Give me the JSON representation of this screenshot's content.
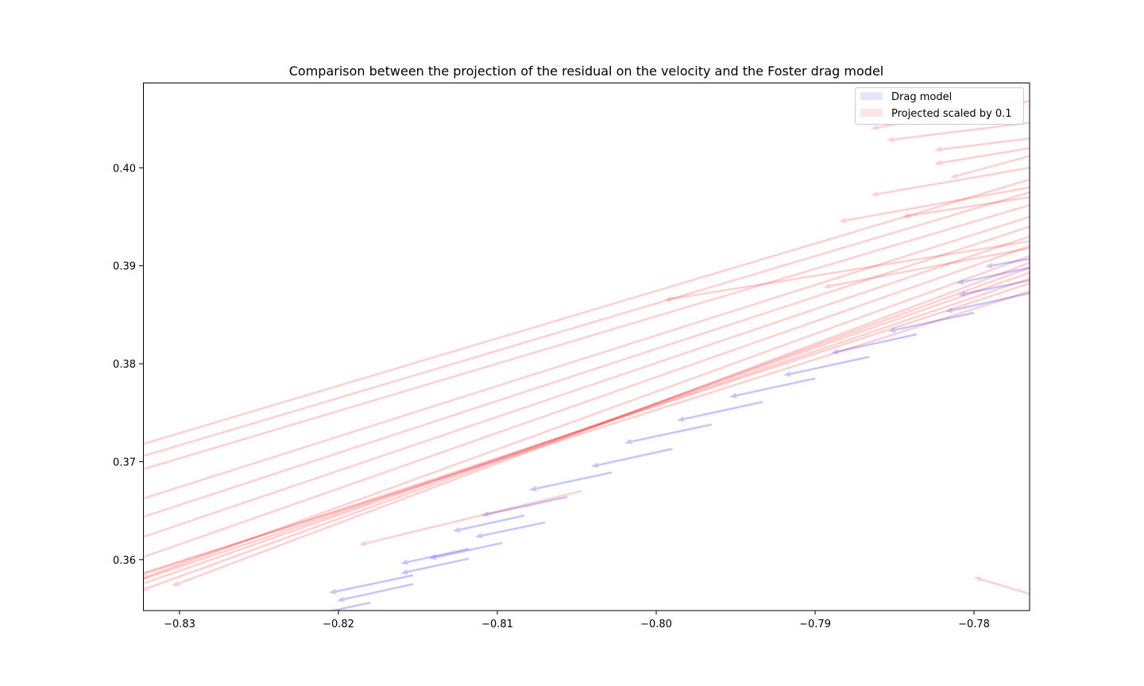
{
  "chart_data": {
    "type": "quiver",
    "title": "Comparison between the projection of the residual on the velocity and the Foster drag model",
    "xlabel": "",
    "ylabel": "",
    "xlim": [
      -0.8323,
      -0.7765
    ],
    "ylim": [
      0.3548,
      0.4087
    ],
    "x_ticks": [
      -0.83,
      -0.82,
      -0.81,
      -0.8,
      -0.79,
      -0.78
    ],
    "x_tick_labels": [
      "−0.83",
      "−0.82",
      "−0.81",
      "−0.80",
      "−0.79",
      "−0.78"
    ],
    "y_ticks": [
      0.36,
      0.37,
      0.38,
      0.39,
      0.4
    ],
    "y_tick_labels": [
      "0.36",
      "0.37",
      "0.38",
      "0.39",
      "0.40"
    ],
    "grid": false,
    "legend_position": "top-right",
    "series": [
      {
        "name": "Drag model",
        "color": "#0000ff",
        "alpha": 0.22,
        "vectors": [
          {
            "x": -0.8153,
            "y": 0.3575,
            "u": -0.0048,
            "v": -0.0017
          },
          {
            "x": -0.8153,
            "y": 0.3584,
            "u": -0.0053,
            "v": -0.0018
          },
          {
            "x": -0.8118,
            "y": 0.3611,
            "u": -0.0043,
            "v": -0.0015
          },
          {
            "x": -0.8083,
            "y": 0.3645,
            "u": -0.0045,
            "v": -0.0016
          },
          {
            "x": -0.8097,
            "y": 0.3617,
            "u": -0.0046,
            "v": -0.0016
          },
          {
            "x": -0.8056,
            "y": 0.3664,
            "u": -0.0054,
            "v": -0.0019
          },
          {
            "x": -0.8028,
            "y": 0.3689,
            "u": -0.0052,
            "v": -0.0018
          },
          {
            "x": -0.799,
            "y": 0.3713,
            "u": -0.0051,
            "v": -0.0018
          },
          {
            "x": -0.7965,
            "y": 0.3738,
            "u": -0.0055,
            "v": -0.0019
          },
          {
            "x": -0.7933,
            "y": 0.3761,
            "u": -0.0054,
            "v": -0.0019
          },
          {
            "x": -0.79,
            "y": 0.3785,
            "u": -0.0054,
            "v": -0.0019
          },
          {
            "x": -0.7866,
            "y": 0.3807,
            "u": -0.0054,
            "v": -0.0019
          },
          {
            "x": -0.7836,
            "y": 0.383,
            "u": -0.0054,
            "v": -0.0019
          },
          {
            "x": -0.78,
            "y": 0.3852,
            "u": -0.0054,
            "v": -0.0019
          },
          {
            "x": -0.7765,
            "y": 0.3872,
            "u": -0.0053,
            "v": -0.0019
          },
          {
            "x": -0.7765,
            "y": 0.3885,
            "u": -0.0045,
            "v": -0.0015
          },
          {
            "x": -0.7765,
            "y": 0.3898,
            "u": -0.0046,
            "v": -0.0016
          },
          {
            "x": -0.7765,
            "y": 0.3907,
            "u": -0.0028,
            "v": -0.0008
          },
          {
            "x": -0.818,
            "y": 0.3556,
            "u": -0.0047,
            "v": -0.0016
          },
          {
            "x": -0.8118,
            "y": 0.3601,
            "u": -0.0043,
            "v": -0.0015
          },
          {
            "x": -0.807,
            "y": 0.3638,
            "u": -0.0044,
            "v": -0.0015
          }
        ]
      },
      {
        "name": "Projected scaled by 0.1",
        "color": "#ff0000",
        "alpha": 0.18,
        "vectors": [
          {
            "x": -0.7765,
            "y": 0.3874,
            "u": -0.064,
            "v": -0.033
          },
          {
            "x": -0.7765,
            "y": 0.3882,
            "u": -0.062,
            "v": -0.033
          },
          {
            "x": -0.7765,
            "y": 0.3887,
            "u": -0.06,
            "v": -0.033
          },
          {
            "x": -0.7765,
            "y": 0.3893,
            "u": -0.058,
            "v": -0.033
          },
          {
            "x": -0.7765,
            "y": 0.3898,
            "u": -0.056,
            "v": -0.033
          },
          {
            "x": -0.7765,
            "y": 0.3903,
            "u": -0.054,
            "v": -0.033
          },
          {
            "x": -0.7765,
            "y": 0.391,
            "u": -0.056,
            "v": -0.033
          },
          {
            "x": -0.7765,
            "y": 0.392,
            "u": -0.058,
            "v": -0.033
          },
          {
            "x": -0.7765,
            "y": 0.393,
            "u": -0.06,
            "v": -0.033
          },
          {
            "x": -0.7765,
            "y": 0.394,
            "u": -0.064,
            "v": -0.034
          },
          {
            "x": -0.7765,
            "y": 0.395,
            "u": -0.064,
            "v": -0.033
          },
          {
            "x": -0.7765,
            "y": 0.3962,
            "u": -0.06,
            "v": -0.029
          },
          {
            "x": -0.7765,
            "y": 0.3975,
            "u": -0.058,
            "v": -0.028
          },
          {
            "x": -0.7765,
            "y": 0.3988,
            "u": -0.062,
            "v": -0.03
          },
          {
            "x": -0.7765,
            "y": 0.4012,
            "u": -0.005,
            "v": -0.0022
          },
          {
            "x": -0.7765,
            "y": 0.403,
            "u": -0.006,
            "v": -0.0012
          },
          {
            "x": -0.7765,
            "y": 0.4046,
            "u": -0.009,
            "v": -0.0018
          },
          {
            "x": -0.7765,
            "y": 0.4068,
            "u": -0.01,
            "v": -0.0028
          },
          {
            "x": -0.7765,
            "y": 0.398,
            "u": -0.012,
            "v": -0.0035
          },
          {
            "x": -0.7765,
            "y": 0.4,
            "u": -0.01,
            "v": -0.0028
          },
          {
            "x": -0.7765,
            "y": 0.397,
            "u": -0.008,
            "v": -0.002
          },
          {
            "x": -0.7765,
            "y": 0.402,
            "u": -0.006,
            "v": -0.0016
          },
          {
            "x": -0.7765,
            "y": 0.3565,
            "u": -0.0035,
            "v": 0.0017
          },
          {
            "x": -0.8047,
            "y": 0.367,
            "u": -0.014,
            "v": -0.0055
          },
          {
            "x": -0.7765,
            "y": 0.3918,
            "u": -0.013,
            "v": -0.004
          },
          {
            "x": -0.7765,
            "y": 0.3925,
            "u": -0.023,
            "v": -0.006
          }
        ]
      }
    ]
  }
}
